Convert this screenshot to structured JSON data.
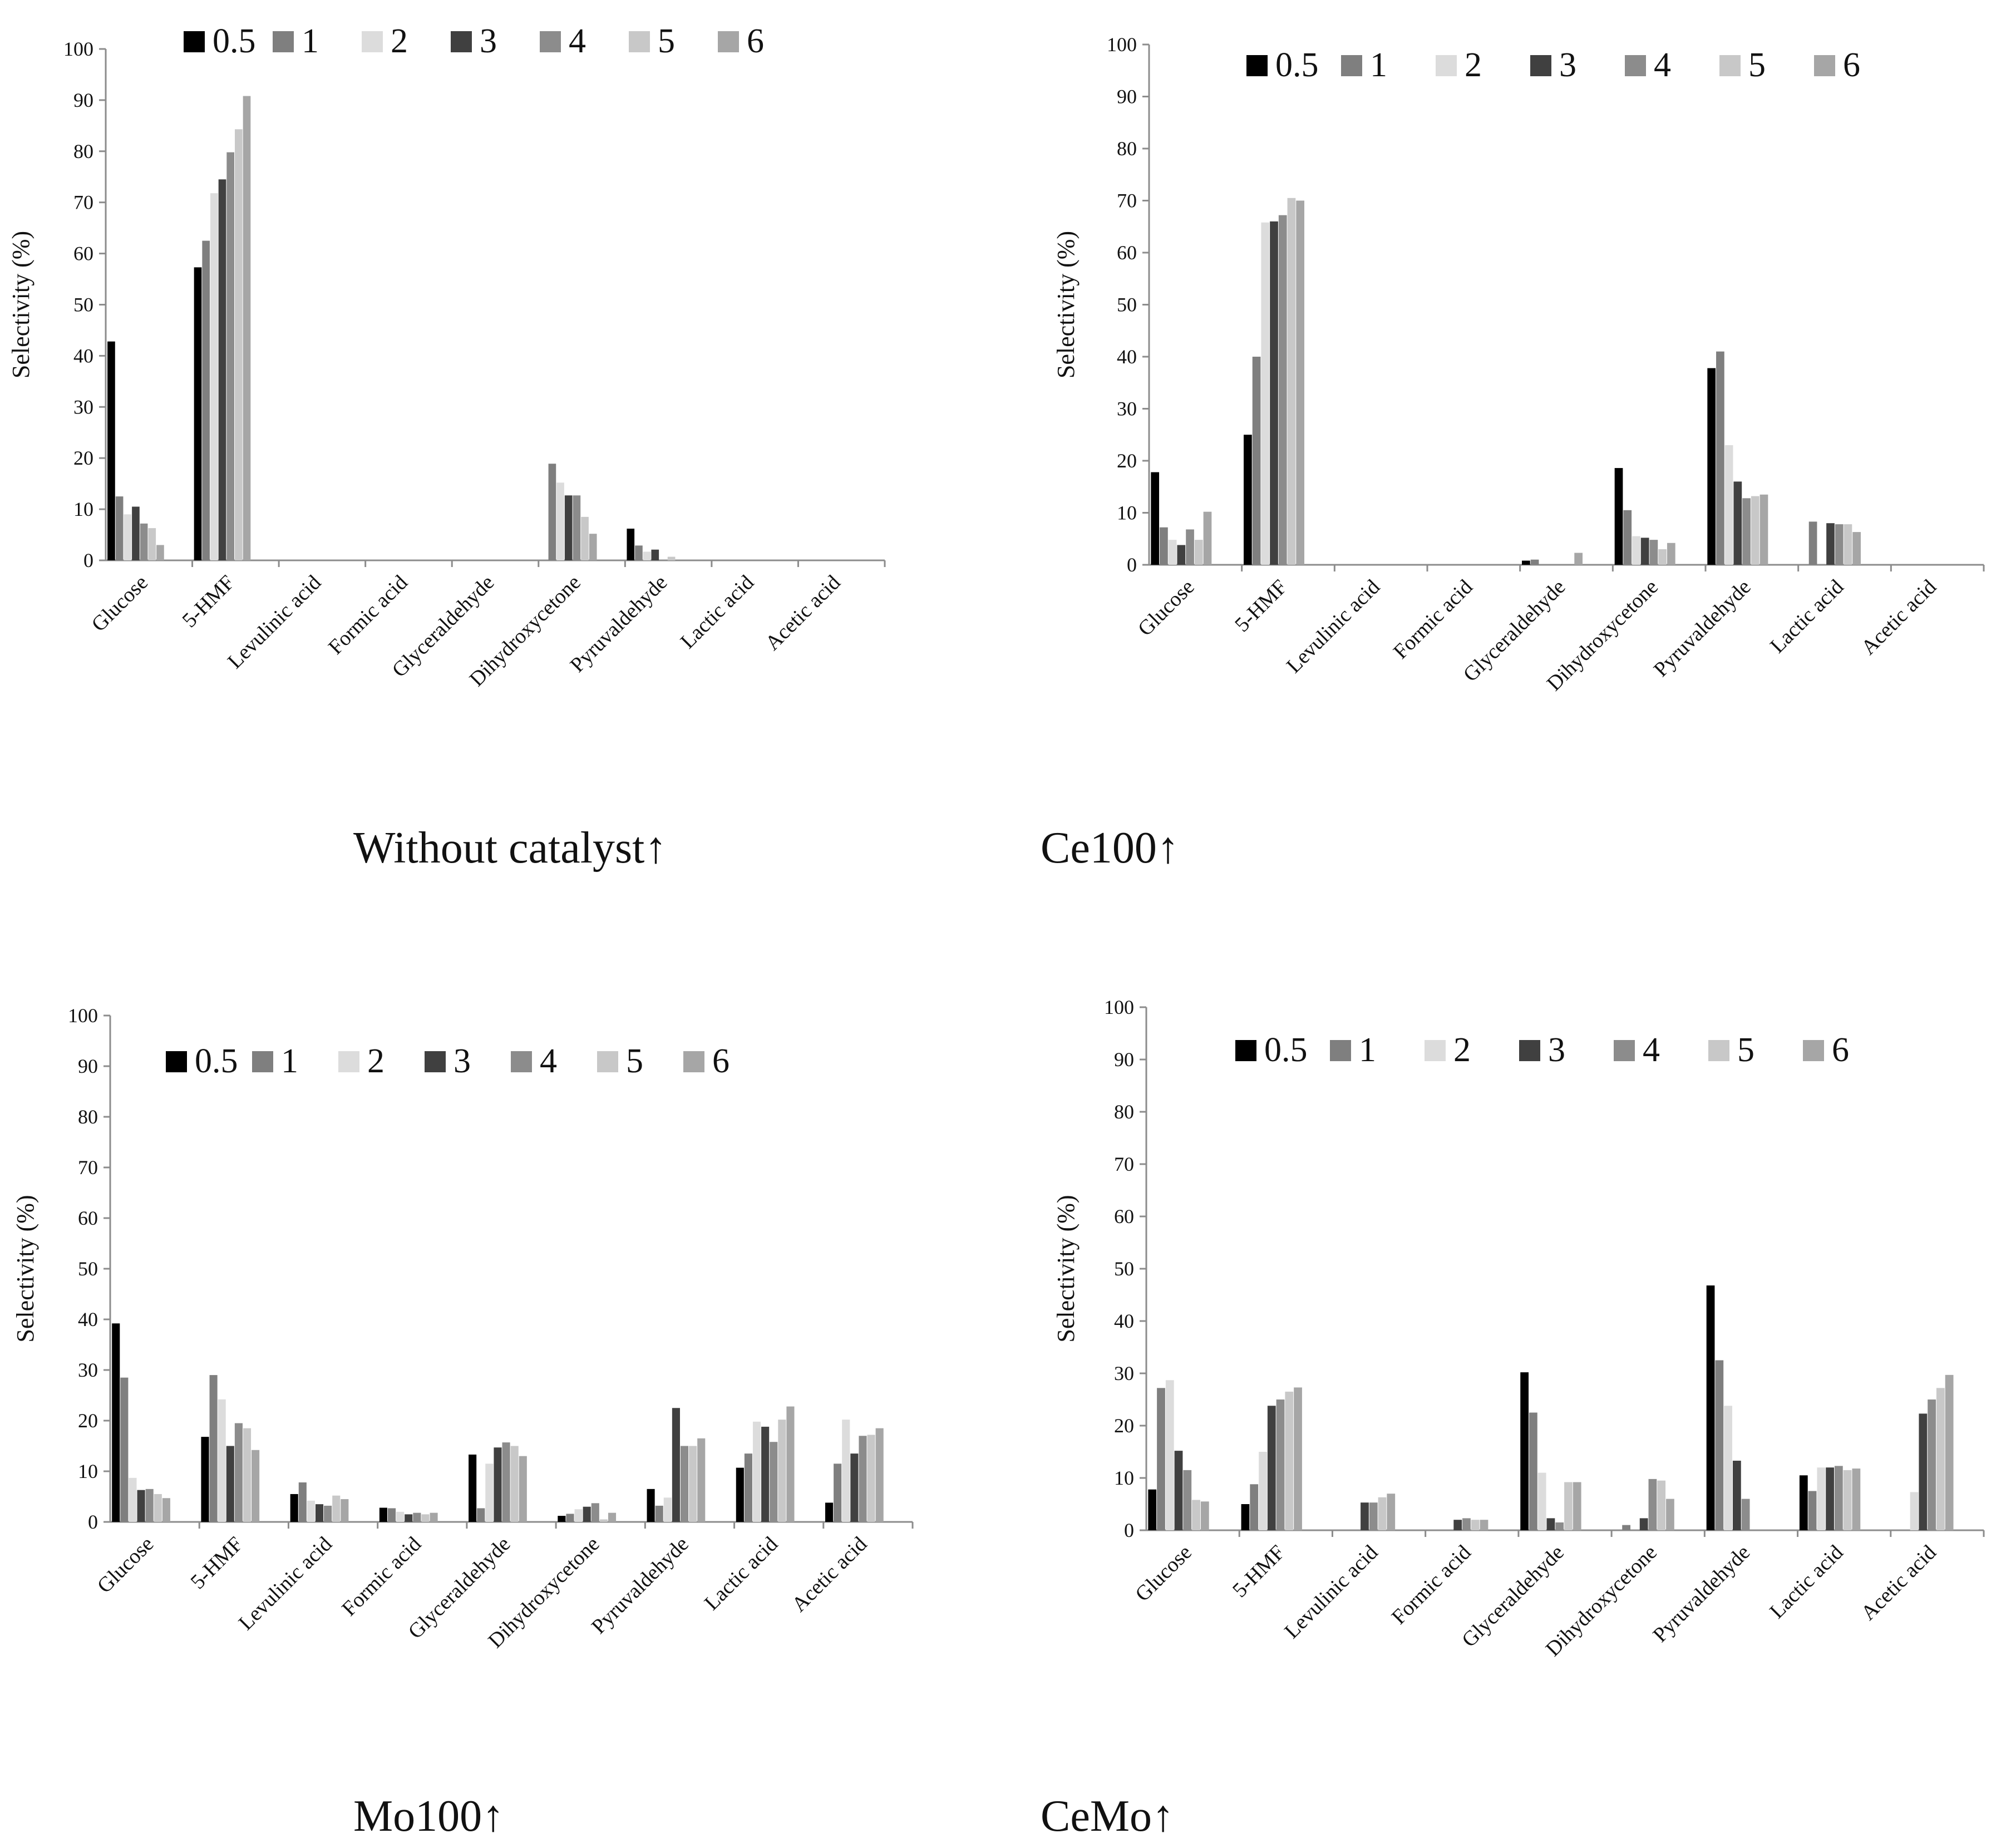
{
  "series_names": [
    "0.5",
    "1",
    "2",
    "3",
    "4",
    "5",
    "6"
  ],
  "series_colors": [
    "#000000",
    "#7f7f7f",
    "#dcdcdc",
    "#404040",
    "#8c8c8c",
    "#c8c8c8",
    "#a6a6a6"
  ],
  "chart_data": [
    {
      "type": "bar",
      "caption": "Without catalyst↑",
      "ylabel": "Selectivity (%)",
      "ylim": [
        0,
        100
      ],
      "yticks": [
        "0",
        "10",
        "20",
        "30",
        "40",
        "50",
        "60",
        "70",
        "80",
        "90",
        "100"
      ],
      "categories": [
        "Glucose",
        "5-HMF",
        "Levulinic acid",
        "Formic acid",
        "Glyceraldehyde",
        "Dihydroxycetone",
        "Pyruvaldehyde",
        "Lactic acid",
        "Acetic acid"
      ],
      "series": [
        {
          "name": "0.5",
          "values": [
            42.8,
            57.3,
            0,
            0,
            0,
            0,
            6.2,
            0,
            0
          ]
        },
        {
          "name": "1",
          "values": [
            12.5,
            62.5,
            0,
            0,
            0,
            18.9,
            2.9,
            0,
            0
          ]
        },
        {
          "name": "2",
          "values": [
            9.0,
            71.8,
            0,
            0,
            0,
            15.2,
            1.7,
            0,
            0
          ]
        },
        {
          "name": "3",
          "values": [
            10.5,
            74.5,
            0,
            0,
            0,
            12.7,
            2.1,
            0,
            0
          ]
        },
        {
          "name": "4",
          "values": [
            7.2,
            79.8,
            0,
            0,
            0,
            12.7,
            0,
            0,
            0
          ]
        },
        {
          "name": "5",
          "values": [
            6.3,
            84.3,
            0,
            0,
            0,
            8.5,
            0.7,
            0,
            0
          ]
        },
        {
          "name": "6",
          "values": [
            3.0,
            90.8,
            0,
            0,
            0,
            5.2,
            0,
            0,
            0
          ]
        }
      ]
    },
    {
      "type": "bar",
      "caption": "Ce100↑",
      "ylabel": "Selectivity (%)",
      "ylim": [
        0,
        100
      ],
      "yticks": [
        "0",
        "10",
        "20",
        "30",
        "40",
        "50",
        "60",
        "70",
        "80",
        "90",
        "100"
      ],
      "categories": [
        "Glucose",
        "5-HMF",
        "Levulinic acid",
        "Formic acid",
        "Glyceraldehyde",
        "Dihydroxycetone",
        "Pyruvaldehyde",
        "Lactic acid",
        "Acetic acid"
      ],
      "series": [
        {
          "name": "0.5",
          "values": [
            17.8,
            25.0,
            0,
            0,
            0.8,
            18.6,
            37.8,
            0,
            0
          ]
        },
        {
          "name": "1",
          "values": [
            7.2,
            40.0,
            0,
            0,
            1.0,
            10.5,
            41.0,
            8.3,
            0
          ]
        },
        {
          "name": "2",
          "values": [
            4.8,
            65.8,
            0,
            0,
            0,
            5.5,
            23.0,
            0,
            0
          ]
        },
        {
          "name": "3",
          "values": [
            3.8,
            66.0,
            0,
            0,
            0,
            5.2,
            16.0,
            8.0,
            0
          ]
        },
        {
          "name": "4",
          "values": [
            6.8,
            67.2,
            0,
            0,
            0,
            4.8,
            12.8,
            7.8,
            0
          ]
        },
        {
          "name": "5",
          "values": [
            4.8,
            70.5,
            0,
            0,
            0,
            3.0,
            13.2,
            7.8,
            0
          ]
        },
        {
          "name": "6",
          "values": [
            10.2,
            70.0,
            0,
            0,
            2.3,
            4.2,
            13.5,
            6.3,
            0
          ]
        }
      ]
    },
    {
      "type": "bar",
      "caption": "Mo100↑",
      "ylabel": "Selectivity (%)",
      "ylim": [
        0,
        100
      ],
      "yticks": [
        "0",
        "10",
        "20",
        "30",
        "40",
        "50",
        "60",
        "70",
        "80",
        "90",
        "100"
      ],
      "categories": [
        "Glucose",
        "5-HMF",
        "Levulinic acid",
        "Formic acid",
        "Glyceraldehyde",
        "Dihydroxycetone",
        "Pyruvaldehyde",
        "Lactic acid",
        "Acetic acid"
      ],
      "series": [
        {
          "name": "0.5",
          "values": [
            39.2,
            16.8,
            5.5,
            2.8,
            13.3,
            1.2,
            6.5,
            10.7,
            3.8
          ]
        },
        {
          "name": "1",
          "values": [
            28.5,
            29.0,
            7.8,
            2.7,
            2.7,
            1.6,
            3.2,
            13.5,
            11.5
          ]
        },
        {
          "name": "2",
          "values": [
            8.7,
            24.2,
            4.2,
            2.0,
            11.5,
            2.5,
            4.8,
            19.8,
            20.2
          ]
        },
        {
          "name": "3",
          "values": [
            6.3,
            15.0,
            3.5,
            1.5,
            14.7,
            3.0,
            22.5,
            18.8,
            13.5
          ]
        },
        {
          "name": "4",
          "values": [
            6.5,
            19.5,
            3.2,
            1.8,
            15.7,
            3.7,
            15.0,
            15.8,
            17.0
          ]
        },
        {
          "name": "5",
          "values": [
            5.5,
            18.5,
            5.2,
            1.5,
            15.0,
            0.5,
            15.0,
            20.2,
            17.2
          ]
        },
        {
          "name": "6",
          "values": [
            4.7,
            14.2,
            4.5,
            1.8,
            13.0,
            1.8,
            16.5,
            22.8,
            18.5
          ]
        }
      ]
    },
    {
      "type": "bar",
      "caption": "CeMo↑",
      "ylabel": "Selectivity (%)",
      "ylim": [
        0,
        100
      ],
      "yticks": [
        "0",
        "10",
        "20",
        "30",
        "40",
        "50",
        "60",
        "70",
        "80",
        "90",
        "100"
      ],
      "categories": [
        "Glucose",
        "5-HMF",
        "Levulinic acid",
        "Formic acid",
        "Glyceraldehyde",
        "Dihydroxycetone",
        "Pyruvaldehyde",
        "Lactic acid",
        "Acetic acid"
      ],
      "series": [
        {
          "name": "0.5",
          "values": [
            7.8,
            5.0,
            0,
            0,
            30.2,
            0,
            46.8,
            10.5,
            0
          ]
        },
        {
          "name": "1",
          "values": [
            27.2,
            8.8,
            0,
            0,
            22.5,
            1.0,
            32.5,
            7.5,
            0
          ]
        },
        {
          "name": "2",
          "values": [
            28.7,
            15.0,
            0,
            0,
            11.0,
            0,
            23.8,
            12.0,
            7.3
          ]
        },
        {
          "name": "3",
          "values": [
            15.2,
            23.8,
            5.3,
            2.0,
            2.3,
            2.3,
            13.3,
            12.0,
            22.3
          ]
        },
        {
          "name": "4",
          "values": [
            11.5,
            25.0,
            5.3,
            2.3,
            1.5,
            9.8,
            6.0,
            12.3,
            25.0
          ]
        },
        {
          "name": "5",
          "values": [
            5.8,
            26.5,
            6.3,
            2.0,
            9.2,
            9.5,
            0,
            11.5,
            27.2
          ]
        },
        {
          "name": "6",
          "values": [
            5.5,
            27.3,
            7.0,
            2.0,
            9.2,
            6.0,
            0,
            11.8,
            29.7
          ]
        }
      ]
    }
  ]
}
